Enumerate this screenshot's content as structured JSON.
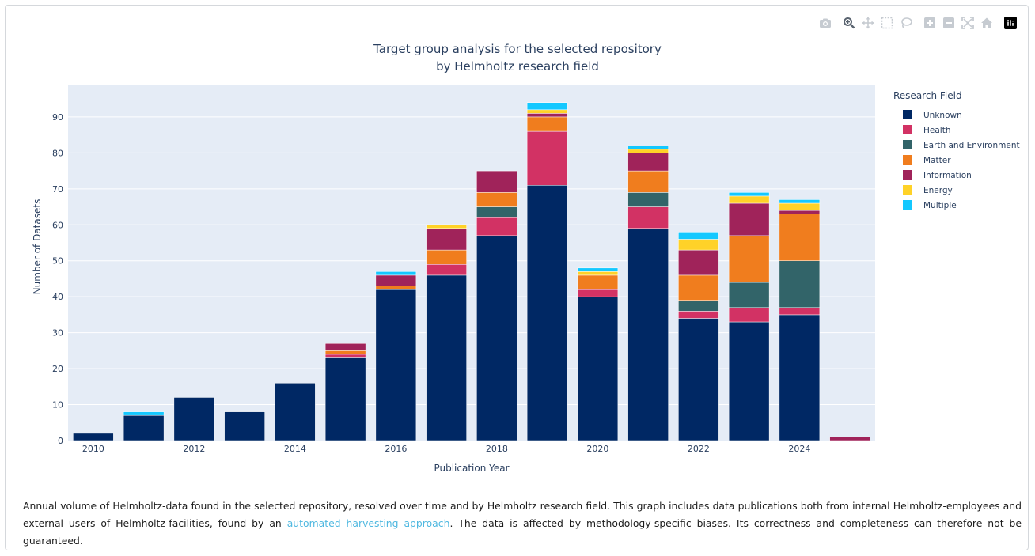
{
  "modebar": {
    "buttons": [
      {
        "name": "camera-icon",
        "title": "Download plot as a png"
      },
      {
        "name": "zoom-icon",
        "title": "Zoom"
      },
      {
        "name": "pan-icon",
        "title": "Pan"
      },
      {
        "name": "box-select-icon",
        "title": "Box Select"
      },
      {
        "name": "lasso-select-icon",
        "title": "Lasso Select"
      },
      {
        "name": "zoom-in-icon",
        "title": "Zoom in"
      },
      {
        "name": "zoom-out-icon",
        "title": "Zoom out"
      },
      {
        "name": "autoscale-icon",
        "title": "Autoscale"
      },
      {
        "name": "reset-axes-icon",
        "title": "Reset axes"
      },
      {
        "name": "plotly-logo-icon",
        "title": "Produced with Plotly"
      }
    ]
  },
  "chart_data": {
    "type": "bar",
    "stacked": true,
    "title_line1": "Target group analysis for the selected repository",
    "title_line2": "by Helmholtz research field",
    "xlabel": "Publication Year",
    "ylabel": "Number of Datasets",
    "legend_title": "Research Field",
    "legend_position": "top-right",
    "grid": true,
    "x": [
      2010,
      2011,
      2012,
      2013,
      2014,
      2015,
      2016,
      2017,
      2018,
      2019,
      2020,
      2021,
      2022,
      2023,
      2024,
      2025
    ],
    "x_ticks": [
      "2010",
      "2012",
      "2014",
      "2016",
      "2018",
      "2020",
      "2022",
      "2024"
    ],
    "x_tick_values": [
      2010,
      2012,
      2014,
      2016,
      2018,
      2020,
      2022,
      2024
    ],
    "y_ticks": [
      "0",
      "10",
      "20",
      "30",
      "40",
      "50",
      "60",
      "70",
      "80",
      "90"
    ],
    "y_tick_values": [
      0,
      10,
      20,
      30,
      40,
      50,
      60,
      70,
      80,
      90
    ],
    "xlim": [
      2009.5,
      2025.5
    ],
    "ylim": [
      0,
      99
    ],
    "colors": {
      "plot_bg": "#e5ecf6",
      "grid": "#ffffff"
    },
    "series": [
      {
        "name": "Unknown",
        "color": "#002864",
        "values": [
          2,
          7,
          12,
          8,
          16,
          23,
          42,
          46,
          57,
          71,
          40,
          59,
          34,
          33,
          35,
          0
        ]
      },
      {
        "name": "Health",
        "color": "#d23264",
        "values": [
          0,
          0,
          0,
          0,
          0,
          1,
          0,
          3,
          5,
          15,
          2,
          6,
          2,
          4,
          2,
          0
        ]
      },
      {
        "name": "Earth and Environment",
        "color": "#326469",
        "values": [
          0,
          0,
          0,
          0,
          0,
          0,
          0,
          0,
          3,
          0,
          0,
          4,
          3,
          7,
          13,
          0
        ]
      },
      {
        "name": "Matter",
        "color": "#f07d1e",
        "values": [
          0,
          0,
          0,
          0,
          0,
          1,
          1,
          4,
          4,
          4,
          4,
          6,
          7,
          13,
          13,
          0
        ]
      },
      {
        "name": "Information",
        "color": "#a0235a",
        "values": [
          0,
          0,
          0,
          0,
          0,
          2,
          3,
          6,
          6,
          1,
          0,
          5,
          7,
          9,
          1,
          1
        ]
      },
      {
        "name": "Energy",
        "color": "#ffd228",
        "values": [
          0,
          0,
          0,
          0,
          0,
          0,
          0,
          1,
          0,
          1,
          1,
          1,
          3,
          2,
          2,
          0
        ]
      },
      {
        "name": "Multiple",
        "color": "#14c8ff",
        "values": [
          0,
          1,
          0,
          0,
          0,
          0,
          1,
          0,
          0,
          2,
          1,
          1,
          2,
          1,
          1,
          0
        ]
      }
    ]
  },
  "caption": {
    "text_before": "Annual volume of Helmholtz-data found in the selected repository, resolved over time and by Helmholtz research field. This graph includes data publications both from internal Helmholtz-employees and external users of Helmholtz-facilities, found by an ",
    "link_text": "automated harvesting approach",
    "text_after": ". The data is affected by methodology-specific biases. Its correctness and completeness can therefore not be guaranteed."
  }
}
